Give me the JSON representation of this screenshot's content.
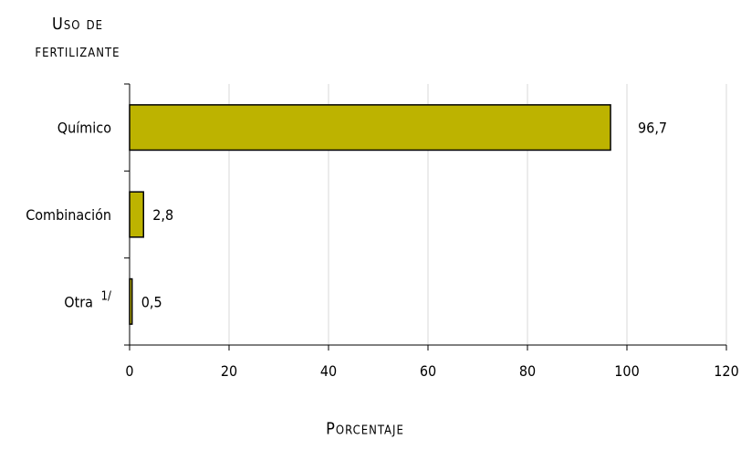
{
  "chart_data": {
    "type": "bar",
    "orientation": "horizontal",
    "ylabel_lines": [
      "Uso de",
      "fertilizante"
    ],
    "xlabel": "Porcentaje",
    "categories": [
      "Químico",
      "Combinación",
      "Otra"
    ],
    "category_superscripts": [
      "",
      "",
      "1/"
    ],
    "values": [
      96.7,
      2.8,
      0.5
    ],
    "value_labels": [
      "96,7",
      "2,8",
      "0,5"
    ],
    "xlim": [
      0,
      120
    ],
    "xticks": [
      0,
      20,
      40,
      60,
      80,
      100,
      120
    ],
    "grid": "vertical",
    "bar_color": "#bdb300",
    "bar_edge_color": "#000000"
  }
}
